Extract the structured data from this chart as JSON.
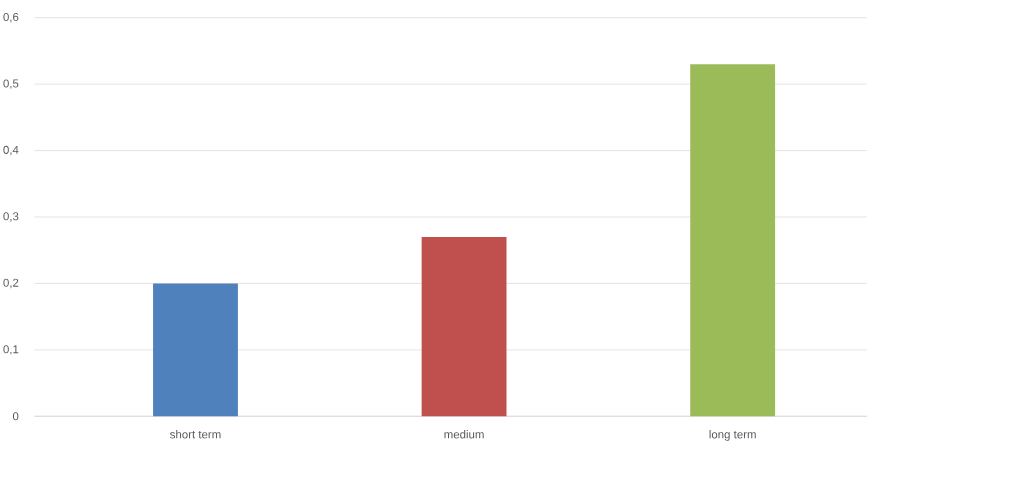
{
  "chart_data": {
    "type": "bar",
    "categories": [
      "short term",
      "medium",
      "long term"
    ],
    "values": [
      0.2,
      0.27,
      0.53
    ],
    "colors": [
      "#4f81bd",
      "#c0504d",
      "#9bbb59"
    ],
    "ylim": [
      0,
      0.6
    ],
    "yticks": [
      0,
      {
        "value": 0.1,
        "label": "0,1"
      },
      {
        "value": 0.2,
        "label": "0,2"
      },
      {
        "value": 0.3,
        "label": "0,3"
      },
      {
        "value": 0.4,
        "label": "0,4"
      },
      {
        "value": 0.5,
        "label": "0,5"
      },
      {
        "value": 0.6,
        "label": "0,6"
      }
    ],
    "grid": "y"
  }
}
